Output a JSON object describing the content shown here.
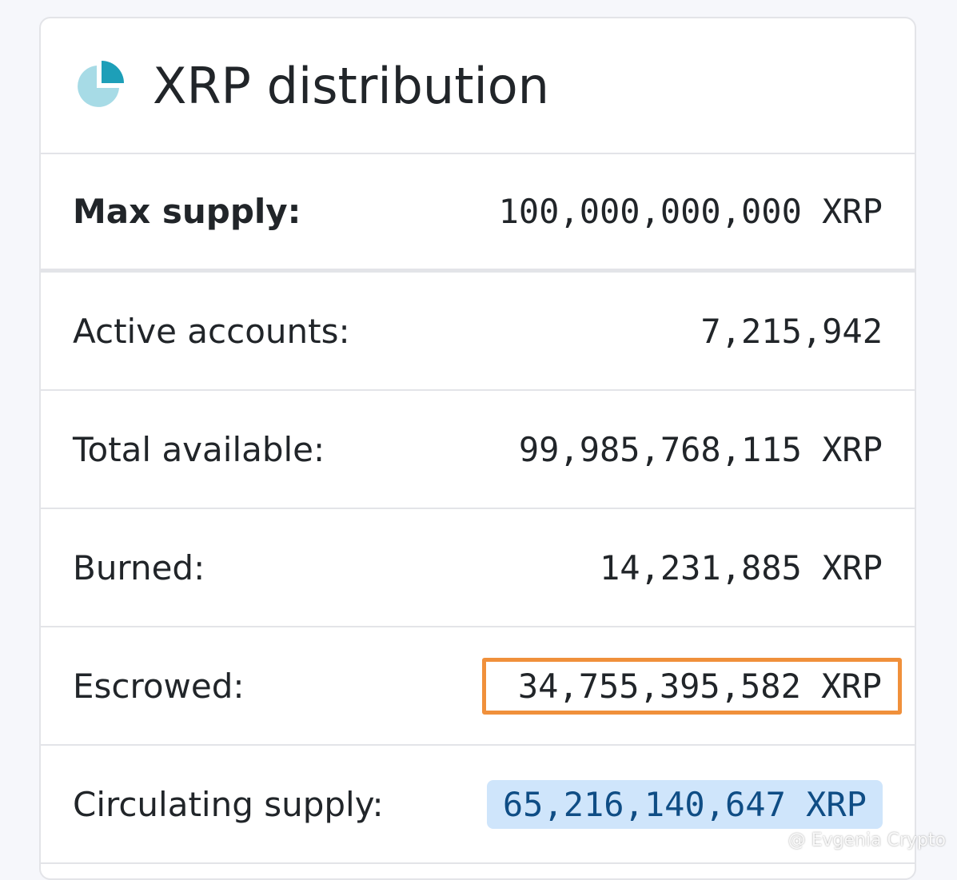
{
  "header": {
    "title": "XRP distribution"
  },
  "rows": [
    {
      "label": "Max supply:",
      "value": "100,000,000,000 XRP"
    },
    {
      "label": "Active accounts:",
      "value": "7,215,942"
    },
    {
      "label": "Total available:",
      "value": "99,985,768,115 XRP"
    },
    {
      "label": "Burned:",
      "value": "14,231,885 XRP"
    },
    {
      "label": "Escrowed:",
      "value": "34,755,395,582 XRP"
    },
    {
      "label": "Circulating supply:",
      "value": "65,216,140,647 XRP"
    }
  ],
  "watermark": "@ Evgenia Crypto"
}
